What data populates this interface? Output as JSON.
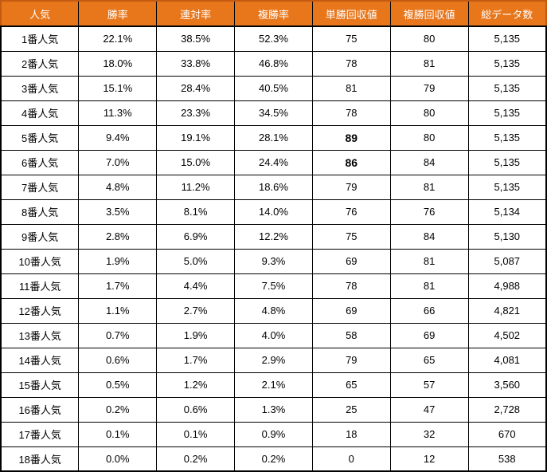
{
  "colors": {
    "header_background": "#E8761B",
    "header_outline": "#C55A11",
    "header_text": "#FFFFFF",
    "grid_line": "#000000",
    "body_text": "#000000",
    "row_background": "#FFFFFF"
  },
  "chart_data": {
    "type": "table",
    "title": "",
    "columns": [
      "人気",
      "勝率",
      "連対率",
      "複勝率",
      "単勝回収値",
      "複勝回収値",
      "総データ数"
    ],
    "rows": [
      [
        "1番人気",
        "22.1%",
        "38.5%",
        "52.3%",
        "75",
        "80",
        "5,135"
      ],
      [
        "2番人気",
        "18.0%",
        "33.8%",
        "46.8%",
        "78",
        "81",
        "5,135"
      ],
      [
        "3番人気",
        "15.1%",
        "28.4%",
        "40.5%",
        "81",
        "79",
        "5,135"
      ],
      [
        "4番人気",
        "11.3%",
        "23.3%",
        "34.5%",
        "78",
        "80",
        "5,135"
      ],
      [
        "5番人気",
        "9.4%",
        "19.1%",
        "28.1%",
        "89",
        "80",
        "5,135"
      ],
      [
        "6番人気",
        "7.0%",
        "15.0%",
        "24.4%",
        "86",
        "84",
        "5,135"
      ],
      [
        "7番人気",
        "4.8%",
        "11.2%",
        "18.6%",
        "79",
        "81",
        "5,135"
      ],
      [
        "8番人気",
        "3.5%",
        "8.1%",
        "14.0%",
        "76",
        "76",
        "5,134"
      ],
      [
        "9番人気",
        "2.8%",
        "6.9%",
        "12.2%",
        "75",
        "84",
        "5,130"
      ],
      [
        "10番人気",
        "1.9%",
        "5.0%",
        "9.3%",
        "69",
        "81",
        "5,087"
      ],
      [
        "11番人気",
        "1.7%",
        "4.4%",
        "7.5%",
        "78",
        "81",
        "4,988"
      ],
      [
        "12番人気",
        "1.1%",
        "2.7%",
        "4.8%",
        "69",
        "66",
        "4,821"
      ],
      [
        "13番人気",
        "0.7%",
        "1.9%",
        "4.0%",
        "58",
        "69",
        "4,502"
      ],
      [
        "14番人気",
        "0.6%",
        "1.7%",
        "2.9%",
        "79",
        "65",
        "4,081"
      ],
      [
        "15番人気",
        "0.5%",
        "1.2%",
        "2.1%",
        "65",
        "57",
        "3,560"
      ],
      [
        "16番人気",
        "0.2%",
        "0.6%",
        "1.3%",
        "25",
        "47",
        "2,728"
      ],
      [
        "17番人気",
        "0.1%",
        "0.1%",
        "0.9%",
        "18",
        "32",
        "670"
      ],
      [
        "18番人気",
        "0.0%",
        "0.2%",
        "0.2%",
        "0",
        "12",
        "538"
      ]
    ],
    "bold_cells": [
      [
        4,
        4
      ],
      [
        5,
        4
      ]
    ],
    "layout": {
      "column_count": 7,
      "row_count": 18,
      "all_cells_centered": true,
      "grid": true
    }
  }
}
